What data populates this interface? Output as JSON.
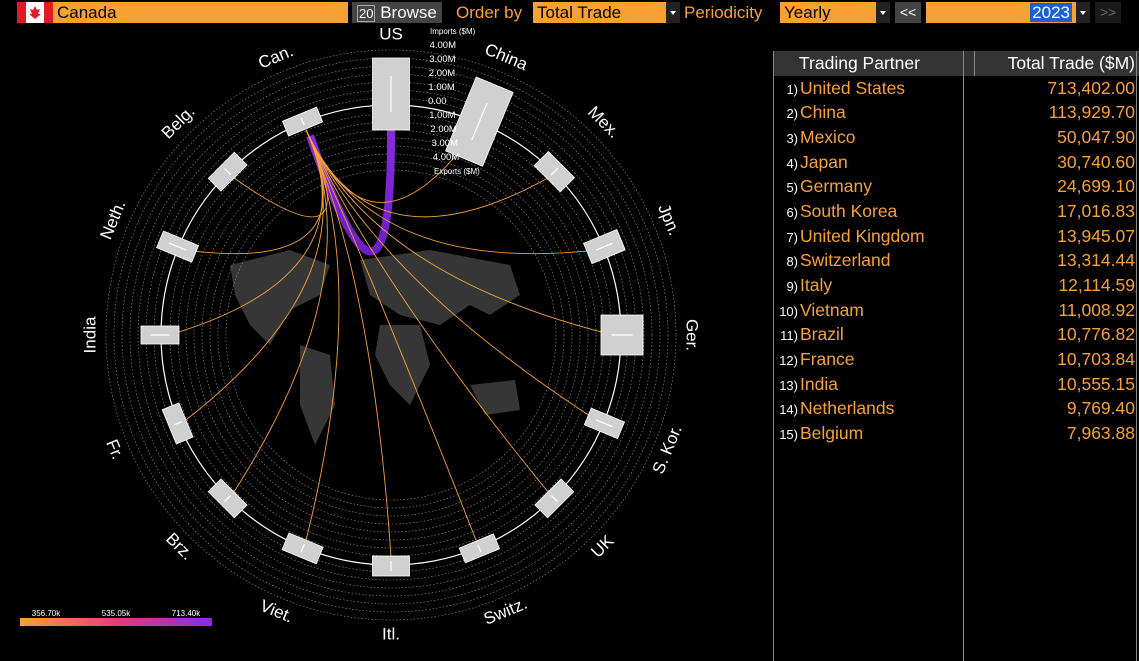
{
  "toolbar": {
    "country": "Canada",
    "browse_key": "20",
    "browse": "Browse",
    "order_by_label": "Order by",
    "order_by": "Total Trade",
    "periodicity_label": "Periodicity",
    "periodicity": "Yearly",
    "prev": "<<",
    "year": "2023",
    "next": ">>"
  },
  "chart": {
    "partner_labels": [
      "US",
      "China",
      "Mex.",
      "Jpn.",
      "Ger.",
      "S. Kor.",
      "UK",
      "Switz.",
      "Itl.",
      "Viet.",
      "Brz.",
      "Fr.",
      "India",
      "Neth.",
      "Belg.",
      "Can."
    ],
    "scale_labels": [
      "Imports ($M)",
      "4.00M",
      "3.00M",
      "2.00M",
      "1.00M",
      "0.00",
      "1.00M",
      "2.00M",
      "3.00M",
      "4.00M",
      "Exports ($M)"
    ],
    "color_scale": [
      "356.70k",
      "535.05k",
      "713.40k"
    ]
  },
  "table": {
    "columns": [
      "Trading Partner",
      "Total Trade ($M)"
    ],
    "rows": [
      [
        "1)",
        "United States",
        "713,402.00"
      ],
      [
        "2)",
        "China",
        "113,929.70"
      ],
      [
        "3)",
        "Mexico",
        "50,047.90"
      ],
      [
        "4)",
        "Japan",
        "30,740.60"
      ],
      [
        "5)",
        "Germany",
        "24,699.10"
      ],
      [
        "6)",
        "South Korea",
        "17,016.83"
      ],
      [
        "7)",
        "United Kingdom",
        "13,945.07"
      ],
      [
        "8)",
        "Switzerland",
        "13,314.44"
      ],
      [
        "9)",
        "Italy",
        "12,114.59"
      ],
      [
        "10)",
        "Vietnam",
        "11,008.92"
      ],
      [
        "11)",
        "Brazil",
        "10,776.82"
      ],
      [
        "12)",
        "France",
        "10,703.84"
      ],
      [
        "13)",
        "India",
        "10,555.15"
      ],
      [
        "14)",
        "Netherlands",
        "9,769.40"
      ],
      [
        "15)",
        "Belgium",
        "7,963.88"
      ]
    ]
  }
}
